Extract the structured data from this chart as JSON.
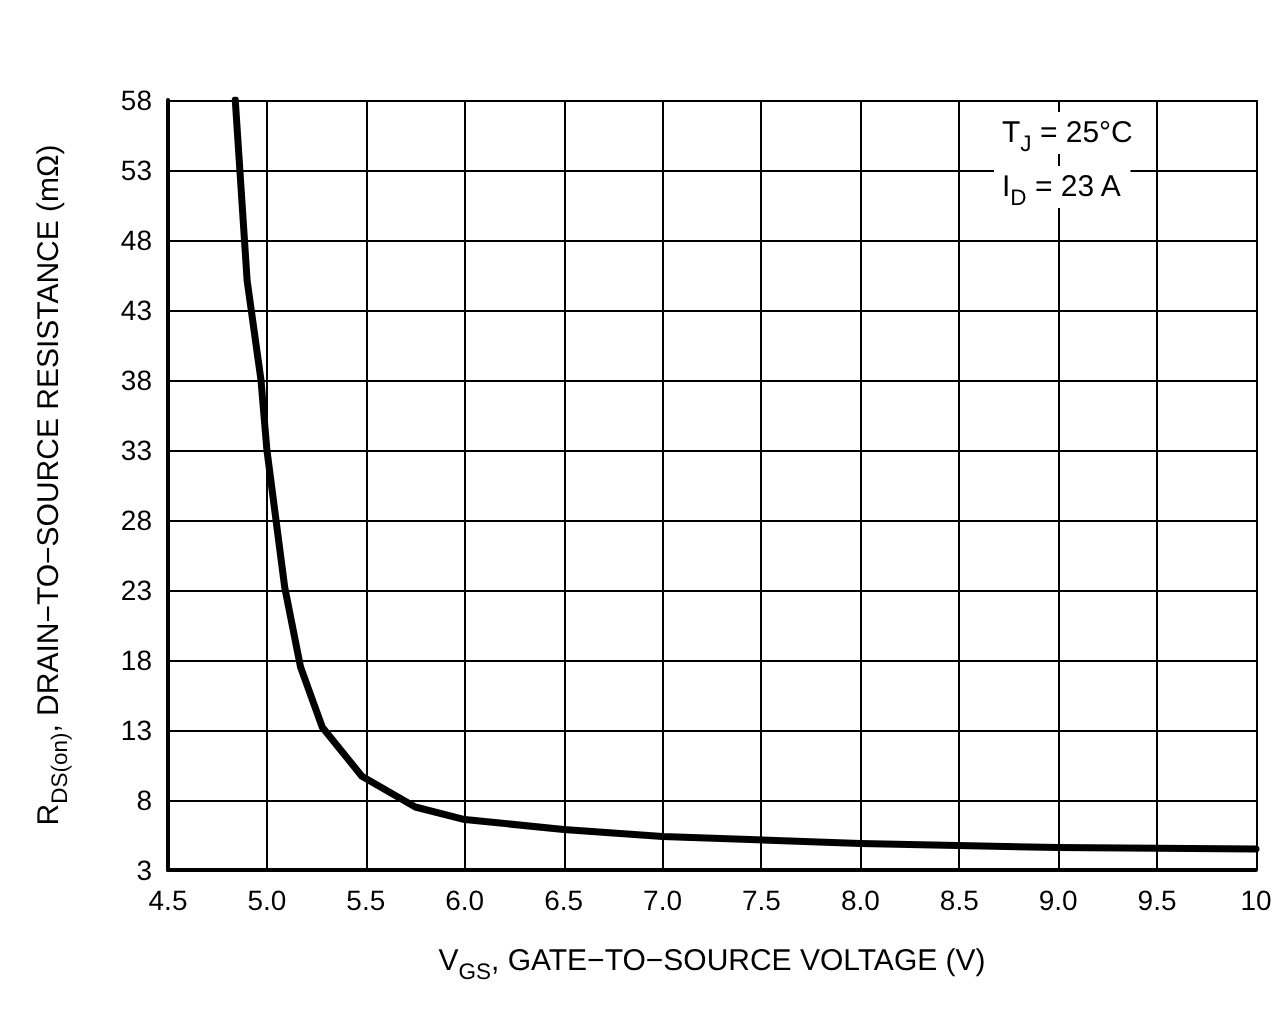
{
  "chart_data": {
    "type": "line",
    "xlabel": "V$_{GS}$, GATE−TO−SOURCE VOLTAGE (V)",
    "ylabel": "R$_{DS(on)}$, DRAIN−TO−SOURCE RESISTANCE (mΩ)",
    "x": [
      4.84,
      4.9,
      4.97,
      5.0,
      5.09,
      5.17,
      5.28,
      5.48,
      5.75,
      6.0,
      6.5,
      7.0,
      8.0,
      9.0,
      10.0
    ],
    "series": [
      {
        "color": "#000000",
        "values": [
          58,
          45.1,
          38,
          33,
          23.2,
          17.5,
          13.2,
          9.7,
          7.5,
          6.6,
          5.9,
          5.4,
          4.9,
          4.6,
          4.5
        ]
      }
    ],
    "xlim": [
      4.5,
      10
    ],
    "xticks": [
      4.5,
      {
        "value": 5,
        "label": "5.0"
      },
      5.5,
      {
        "value": 6,
        "label": "6.0"
      },
      6.5,
      {
        "value": 7,
        "label": "7.0"
      },
      7.5,
      {
        "value": 8,
        "label": "8.0"
      },
      8.5,
      {
        "value": 9,
        "label": "9.0"
      },
      9.5,
      10
    ],
    "ylim": [
      3,
      58
    ],
    "yticks": [
      3,
      8,
      13,
      18,
      23,
      28,
      33,
      38,
      43,
      48,
      53,
      58
    ],
    "grid": true,
    "marker": "none",
    "line_style": "solid",
    "annotations": [
      "T$_{J}$ = 25°C",
      "I$_{D}$ = 23 A"
    ]
  }
}
